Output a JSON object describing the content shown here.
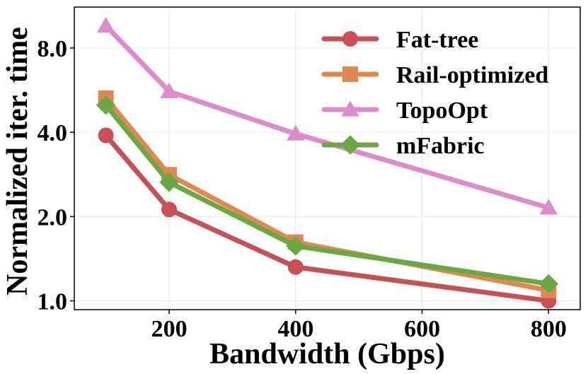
{
  "chart_data": {
    "type": "line",
    "title": "",
    "xlabel": "Bandwidth (Gbps)",
    "ylabel": "Normalized iter. time",
    "yscale": "log2",
    "xlim": [
      50,
      850
    ],
    "ylim": [
      0.93,
      11.2
    ],
    "xticks": [
      200,
      400,
      600,
      800
    ],
    "xtick_labels": [
      "200",
      "400",
      "600",
      "800"
    ],
    "yticks": [
      1.0,
      2.0,
      4.0,
      8.0
    ],
    "ytick_labels": [
      "1.0",
      "2.0",
      "4.0",
      "8.0"
    ],
    "grid": true,
    "legend_position": "top-right",
    "x": [
      100,
      200,
      400,
      800
    ],
    "series": [
      {
        "name": "Fat-tree",
        "values": [
          3.9,
          2.12,
          1.32,
          1.0
        ],
        "color": "#c85055",
        "marker": "circle"
      },
      {
        "name": "Rail-optimized",
        "values": [
          5.3,
          2.82,
          1.62,
          1.09
        ],
        "color": "#e0884f",
        "marker": "square"
      },
      {
        "name": "TopoOpt",
        "values": [
          9.6,
          5.6,
          3.95,
          2.15
        ],
        "color": "#dd8cc9",
        "marker": "triangle"
      },
      {
        "name": "mFabric",
        "values": [
          5.0,
          2.65,
          1.57,
          1.15
        ],
        "color": "#6aa843",
        "marker": "diamond"
      }
    ]
  }
}
